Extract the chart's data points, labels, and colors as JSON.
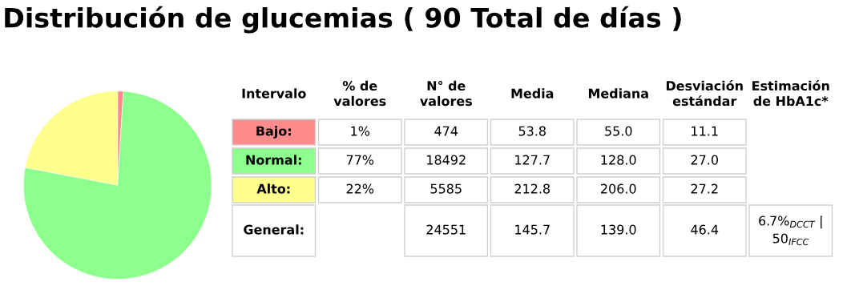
{
  "chart_data": [
    {
      "type": "pie",
      "title": "Distribución de glucemias ( 90 Total de días )",
      "categories": [
        null,
        null,
        null
      ],
      "values": [
        1,
        77,
        22
      ],
      "colors": [
        "#ff8c8c",
        "#8cff8c",
        "#ffff8c"
      ]
    },
    {
      "type": "other",
      "categories": [
        "Intervalo",
        "% de\nvalores",
        "N° de\nvalores",
        "Media",
        "Mediana",
        "Desviación\nestándar",
        "Estimación\nde HbA1c*"
      ],
      "y_categories": [
        "Bajo:",
        "Normal:",
        "Alto:",
        "General:"
      ],
      "cell_labels": [
        [
          "1%",
          "474",
          "53.8",
          "55.0",
          "11.1",
          null
        ],
        [
          "77%",
          "18492",
          "127.7",
          "128.0",
          "27.0",
          null
        ],
        [
          "22%",
          "5585",
          "212.8",
          "206.0",
          "27.2",
          null
        ],
        [
          null,
          "24551",
          "145.7",
          "139.0",
          "46.4",
          "6.7%$_{DCCT}$ |\n50$_{IFCC}$"
        ]
      ]
    }
  ]
}
